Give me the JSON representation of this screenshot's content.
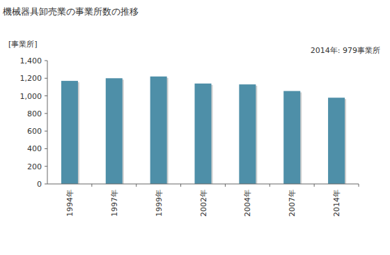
{
  "chart_data": {
    "type": "bar",
    "title": "機械器具卸売業の事業所数の推移",
    "y_label": "[事業所]",
    "annotation": "2014年: 979事業所",
    "categories": [
      "1994年",
      "1997年",
      "1999年",
      "2002年",
      "2004年",
      "2007年",
      "2014年"
    ],
    "values": [
      1170,
      1200,
      1220,
      1140,
      1130,
      1055,
      979
    ],
    "color": "#4e8fa8",
    "ylim": [
      0,
      1400
    ],
    "yticks": [
      0,
      200,
      400,
      600,
      800,
      {
        "value": 1000,
        "label": "1,000"
      },
      {
        "value": 1200,
        "label": "1,200"
      },
      {
        "value": 1400,
        "label": "1,400"
      }
    ],
    "grid": false
  }
}
